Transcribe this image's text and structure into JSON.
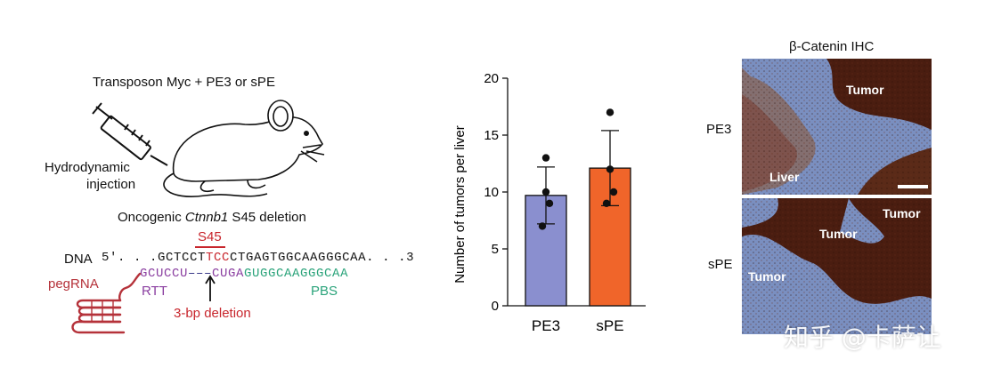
{
  "panel_a": {
    "injection_title": "Transposon Myc + PE3 or sPE",
    "hydro_line1": "Hydrodynamic",
    "hydro_line2": "injection",
    "deletion_title_pre": "Oncogenic ",
    "deletion_title_gene": "Ctnnb1",
    "deletion_title_post": " S45 deletion",
    "s45_label": "S45",
    "dna_label": "DNA",
    "dna_5prime": "5′. . .",
    "dna_seq_a": "GCTCCT",
    "dna_seq_b": "TCC",
    "dna_seq_c": "CTGAGTGGCAAGGGCAA",
    "dna_3prime": ". . .3",
    "peg_rtt_a": "GCUCCU",
    "peg_gap": "–––",
    "peg_rtt_b": "CUGA",
    "peg_pbs": "GUGGCAAGGGCAA",
    "pegrna_label": "pegRNA",
    "rtt_label": "RTT",
    "pbs_label": "PBS",
    "deletion_label": "3-bp deletion",
    "colors": {
      "red": "#c8262d",
      "purple": "#8a3ea0",
      "green": "#2aa37a",
      "pegrna": "#b5323a"
    }
  },
  "chart_data": {
    "type": "bar",
    "categories": [
      "PE3",
      "sPE"
    ],
    "values": [
      9.7,
      12.1
    ],
    "error": [
      2.5,
      3.3
    ],
    "points": [
      [
        13,
        10,
        9,
        7
      ],
      [
        17,
        12,
        10,
        9
      ]
    ],
    "colors": [
      "#8a8fcf",
      "#f0652a"
    ],
    "ylabel": "Number of tumors per liver",
    "ylim": [
      0,
      20
    ],
    "yticks": [
      0,
      5,
      10,
      15,
      20
    ],
    "tick_labels": [
      "0",
      "5",
      "10",
      "15",
      "20"
    ]
  },
  "panel_c": {
    "title": "β-Catenin IHC",
    "row_labels": [
      "PE3",
      "sPE"
    ],
    "top_labels": [
      "Tumor",
      "Liver"
    ],
    "bottom_labels": [
      "Tumor",
      "Tumor",
      "Tumor"
    ],
    "tissue_colors": {
      "tumor": "#4a1d10",
      "stroma": "#7a8fc0"
    }
  },
  "watermark": "知乎 @卡萨让"
}
